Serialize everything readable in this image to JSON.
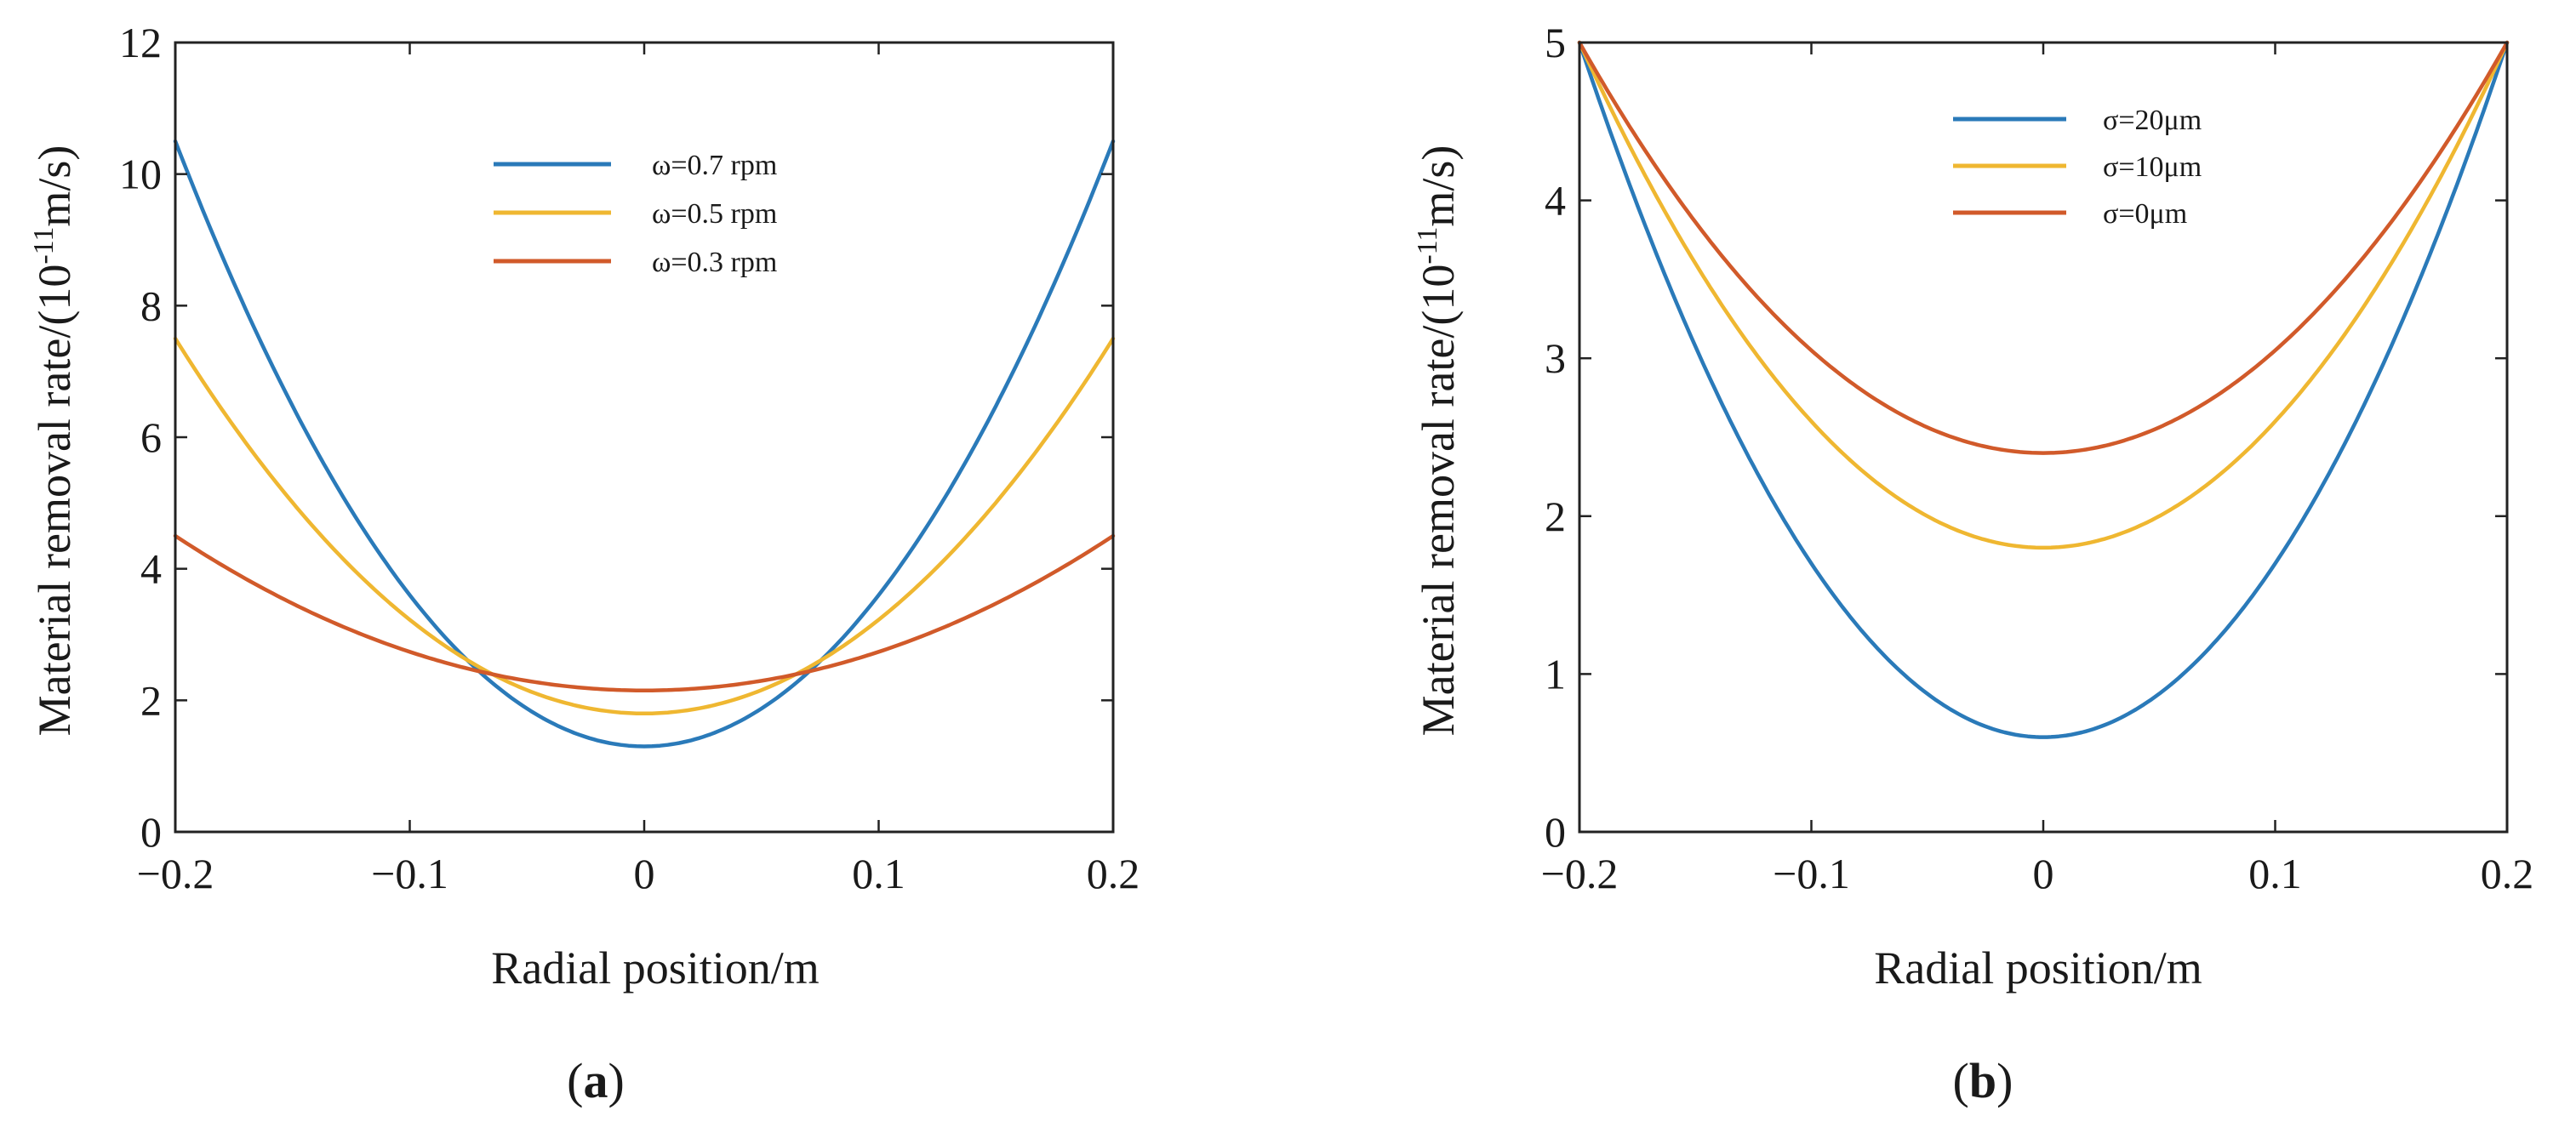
{
  "chart_data": [
    {
      "type": "line",
      "panel_label": "a",
      "xlabel": "Radial position/m",
      "ylabel_main": "Material removal rate/(10",
      "ylabel_exp": "-11",
      "ylabel_tail": "m/s)",
      "xlim": [
        -0.2,
        0.2
      ],
      "ylim": [
        0,
        12
      ],
      "xticks": [
        -0.2,
        -0.1,
        0,
        0.1,
        0.2
      ],
      "xtick_labels": [
        "−0.2",
        "−0.1",
        "0",
        "0.1",
        "0.2"
      ],
      "yticks": [
        0,
        2,
        4,
        6,
        8,
        10,
        12
      ],
      "ytick_labels": [
        "0",
        "2",
        "4",
        "6",
        "8",
        "10",
        "12"
      ],
      "legend_position": "top-center",
      "series": [
        {
          "name": "ω=0.7 rpm",
          "color": "#2a7ab9",
          "quadratic": {
            "y_at_center": 1.3,
            "y_at_edge": 10.5
          }
        },
        {
          "name": "ω=0.5 rpm",
          "color": "#efb731",
          "quadratic": {
            "y_at_center": 1.8,
            "y_at_edge": 7.5
          }
        },
        {
          "name": "ω=0.3 rpm",
          "color": "#d15a2a",
          "quadratic": {
            "y_at_center": 2.15,
            "y_at_edge": 4.5
          }
        }
      ]
    },
    {
      "type": "line",
      "panel_label": "b",
      "xlabel": "Radial position/m",
      "ylabel_main": "Material removal rate/(10",
      "ylabel_exp": "-11",
      "ylabel_tail": "m/s)",
      "xlim": [
        -0.2,
        0.2
      ],
      "ylim": [
        0,
        5
      ],
      "xticks": [
        -0.2,
        -0.1,
        0,
        0.1,
        0.2
      ],
      "xtick_labels": [
        "−0.2",
        "−0.1",
        "0",
        "0.1",
        "0.2"
      ],
      "yticks": [
        0,
        1,
        2,
        3,
        4,
        5
      ],
      "ytick_labels": [
        "0",
        "1",
        "2",
        "3",
        "4",
        "5"
      ],
      "legend_position": "top-center",
      "series": [
        {
          "name": "σ=20μm",
          "color": "#2a7ab9",
          "quadratic": {
            "y_at_center": 0.6,
            "y_at_edge": 5.0
          }
        },
        {
          "name": "σ=10μm",
          "color": "#efb731",
          "quadratic": {
            "y_at_center": 1.8,
            "y_at_edge": 5.0
          }
        },
        {
          "name": "σ=0μm",
          "color": "#d15a2a",
          "quadratic": {
            "y_at_center": 2.4,
            "y_at_edge": 5.0
          }
        }
      ]
    }
  ]
}
